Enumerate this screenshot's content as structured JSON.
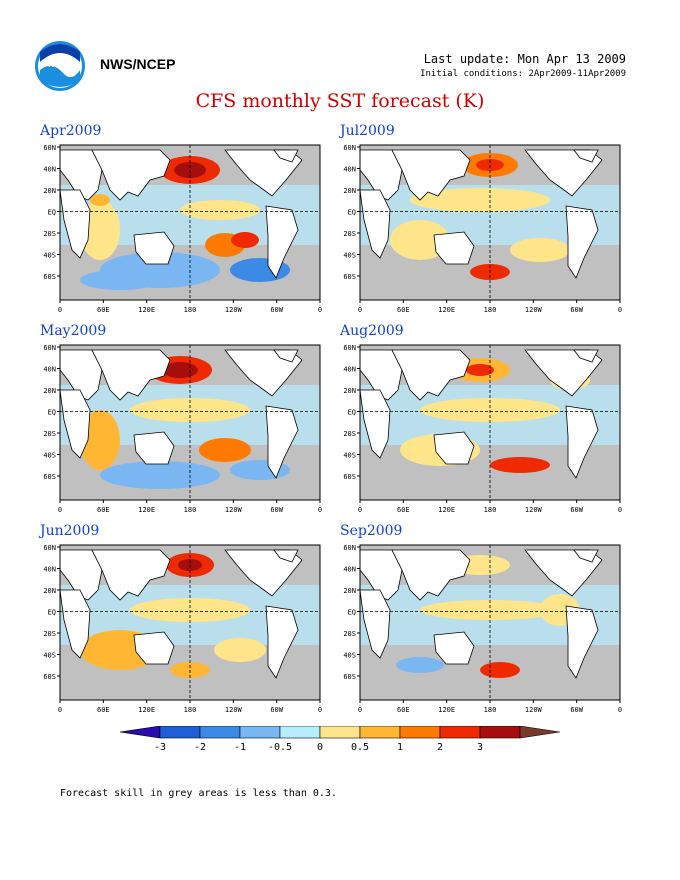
{
  "header": {
    "org": "NWS/NCEP",
    "last_update": "Last update: Mon Apr 13 2009",
    "initial_conditions": "Initial conditions: 2Apr2009-11Apr2009",
    "title": "CFS monthly SST forecast (K)",
    "logo_icon": "noaa-logo-icon"
  },
  "panels": [
    {
      "label": "Apr2009"
    },
    {
      "label": "Jul2009"
    },
    {
      "label": "May2009"
    },
    {
      "label": "Aug2009"
    },
    {
      "label": "Jun2009"
    },
    {
      "label": "Sep2009"
    }
  ],
  "axes": {
    "lat_ticks": [
      "60N",
      "40N",
      "20N",
      "EQ",
      "20S",
      "40S",
      "60S"
    ],
    "lon_ticks": [
      "0",
      "60E",
      "120E",
      "180",
      "120W",
      "60W",
      "0"
    ]
  },
  "colorbar": {
    "labels": [
      "-3",
      "-2",
      "-1",
      "-0.5",
      "0",
      "0.5",
      "1",
      "2",
      "3"
    ],
    "colors": [
      "#2a0bb0",
      "#1f5fd6",
      "#3b8ae6",
      "#79b6f2",
      "#b8ecff",
      "#ffe58a",
      "#ffb733",
      "#ff7a00",
      "#f02a00",
      "#a60e0e",
      "#7a3a2a"
    ]
  },
  "footnote": "Forecast skill in grey areas is less than 0.3.",
  "colors": {
    "title": "#d00000",
    "panel_label": "#1040d0",
    "land": "#ffffff",
    "low_skill": "#c0c0c0"
  }
}
